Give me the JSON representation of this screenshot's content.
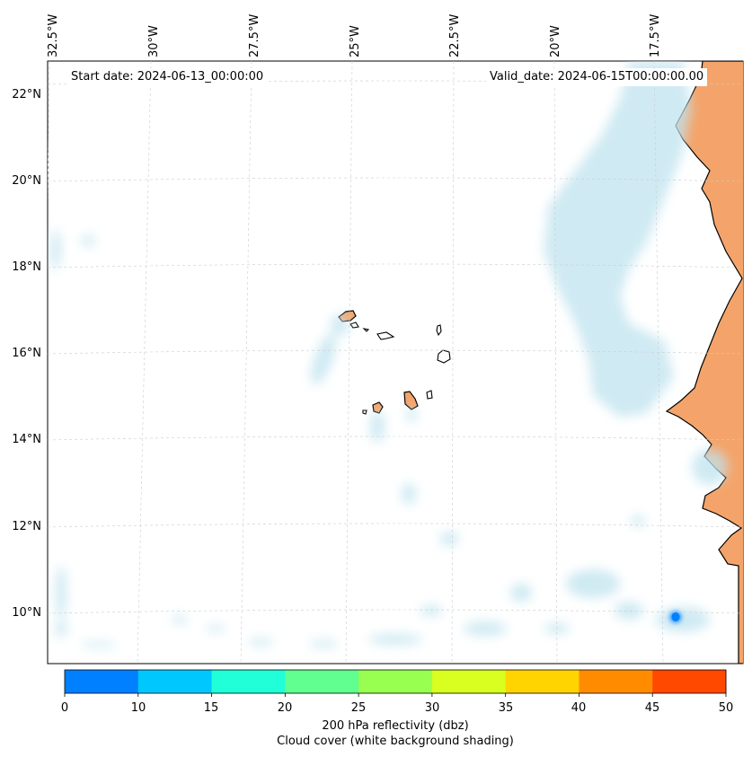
{
  "map": {
    "start_date": "Start date: 2024-06-13_00:00:00",
    "valid_date": "Valid_date: 2024-06-15T00:00:00.00",
    "latitude_labels": [
      "22°N",
      "20°N",
      "18°N",
      "16°N",
      "14°N",
      "12°N",
      "10°N"
    ],
    "longitude_labels": [
      "32.5°W",
      "30°W",
      "27.5°W",
      "25°W",
      "22.5°W",
      "20°W",
      "17.5°W"
    ],
    "land_color": "#f4a46a",
    "cloud_color": "#bfe3ef",
    "coastline_color": "#000000",
    "gridline_color": "#cccccc"
  },
  "colorbar": {
    "ticks": [
      "0",
      "10",
      "15",
      "20",
      "25",
      "30",
      "35",
      "40",
      "45",
      "50"
    ],
    "colors": [
      "#0080ff",
      "#00c8ff",
      "#20ffd8",
      "#60ff90",
      "#98ff50",
      "#d8ff20",
      "#ffd400",
      "#ff8c00",
      "#ff4800"
    ],
    "title_line1": "200 hPa reflectivity (dbz)",
    "title_line2": "Cloud cover (white background shading)"
  }
}
